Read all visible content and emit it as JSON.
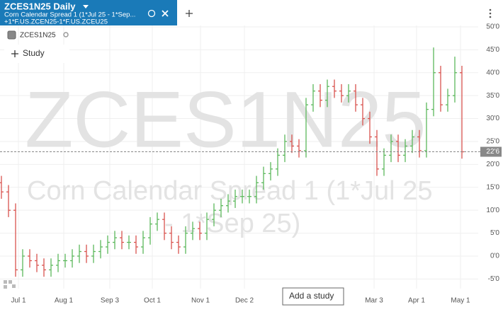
{
  "header": {
    "title": "ZCES1N25 Daily",
    "subtitle": "Corn Calendar Spread 1 (1*Jul 25 - 1*Sep...",
    "formula": "+1*F.US.ZCEN25-1*F.US.ZCEU25"
  },
  "watermark": {
    "symbol": "ZCES1N25",
    "line1": "Corn Calendar Spread 1 (1*Jul 25",
    "line2": "- 1*Sep 25)"
  },
  "toolbar": {
    "legend": "ZCES1N25",
    "study_button": "Study",
    "add_study": "Add a study"
  },
  "chart_data": {
    "type": "ohlc",
    "up_color": "#5cb85c",
    "down_color": "#d9534f",
    "open": [
      16,
      14,
      10,
      -3,
      0,
      -1,
      -2,
      -3,
      -2,
      -1,
      -1,
      0,
      1,
      0,
      1,
      2,
      3,
      4,
      3,
      3,
      2,
      4,
      7,
      8,
      5,
      3,
      2,
      5,
      6,
      5,
      8,
      10,
      11,
      12,
      13,
      13,
      13,
      16,
      18,
      19,
      22,
      25,
      24,
      23,
      33,
      36,
      34,
      37,
      36,
      35,
      36,
      33,
      30,
      26,
      19,
      22,
      25,
      22,
      24,
      26,
      23,
      32,
      40,
      33,
      35,
      40
    ],
    "high": [
      17.5,
      15.5,
      11.5,
      1.5,
      1.5,
      0.5,
      -0.5,
      -0.5,
      0.5,
      0.5,
      1.5,
      2.5,
      2.5,
      2.5,
      3.5,
      4.5,
      5.5,
      5.5,
      4.5,
      4.5,
      5.5,
      8.5,
      9.5,
      9.5,
      6.5,
      4.5,
      6.5,
      7.5,
      7.5,
      9.5,
      11.5,
      12.5,
      13.5,
      14.5,
      14.5,
      14.5,
      17.5,
      19.5,
      20.5,
      23.5,
      26.5,
      26.5,
      25.5,
      34.5,
      37.5,
      37.5,
      38.5,
      38.5,
      37.5,
      37.5,
      37.5,
      34.5,
      31.5,
      27.5,
      23.5,
      26.5,
      26.5,
      25.5,
      27.5,
      27.5,
      33.5,
      45.5,
      41.5,
      36.5,
      43.5,
      41.5
    ],
    "low": [
      12.5,
      8.5,
      -4.5,
      -4.5,
      -2.5,
      -3.5,
      -4.5,
      -4.5,
      -3.5,
      -2.5,
      -2.5,
      -1.5,
      -1.5,
      -1.5,
      -0.5,
      0.5,
      1.5,
      1.5,
      1.5,
      0.5,
      0.5,
      2.5,
      5.5,
      3.5,
      1.5,
      0.5,
      0.5,
      3.5,
      3.5,
      3.5,
      6.5,
      8.5,
      9.5,
      10.5,
      11.5,
      11.5,
      11.5,
      14.5,
      16.5,
      17.5,
      20.5,
      22.5,
      21.5,
      21.5,
      31.5,
      32.5,
      32.5,
      34.5,
      33.5,
      33.5,
      31.5,
      28.5,
      24.5,
      17.5,
      17.5,
      20.5,
      20.5,
      20.5,
      22.5,
      21.5,
      21.5,
      30.5,
      31.5,
      31.5,
      33.5,
      21.25
    ],
    "close": [
      14,
      10,
      -3,
      0,
      -1,
      -2,
      -3,
      -2,
      -1,
      -1,
      0,
      1,
      0,
      1,
      2,
      3,
      4,
      3,
      3,
      2,
      4,
      7,
      8,
      5,
      3,
      2,
      5,
      6,
      5,
      8,
      10,
      11,
      12,
      13,
      13,
      13,
      16,
      18,
      19,
      22,
      25,
      24,
      23,
      33,
      36,
      34,
      37,
      36,
      35,
      36,
      33,
      30,
      26,
      19,
      22,
      25,
      22,
      24,
      26,
      23,
      32,
      40,
      33,
      35,
      40,
      22.75
    ],
    "last_label": "22'6",
    "ylim": [
      -7.1,
      50.3
    ],
    "yticks": [
      {
        "value": 50,
        "label": "50'0"
      },
      {
        "value": 45,
        "label": "45'0"
      },
      {
        "value": 40,
        "label": "40'0"
      },
      {
        "value": 35,
        "label": "35'0"
      },
      {
        "value": 30,
        "label": "30'0"
      },
      {
        "value": 25,
        "label": "25'0"
      },
      {
        "value": 20,
        "label": "20'0"
      },
      {
        "value": 15,
        "label": "15'0"
      },
      {
        "value": 10,
        "label": "10'0"
      },
      {
        "value": 5,
        "label": "5'0"
      },
      {
        "value": 0,
        "label": "0'0"
      },
      {
        "value": -5,
        "label": "-5'0"
      }
    ],
    "xtick_labels": [
      "Jul 1",
      "Aug 1",
      "Sep 3",
      "Oct 1",
      "Nov 1",
      "Dec 2",
      "Mar 3",
      "Apr 1",
      "May 1"
    ],
    "grid": true
  }
}
